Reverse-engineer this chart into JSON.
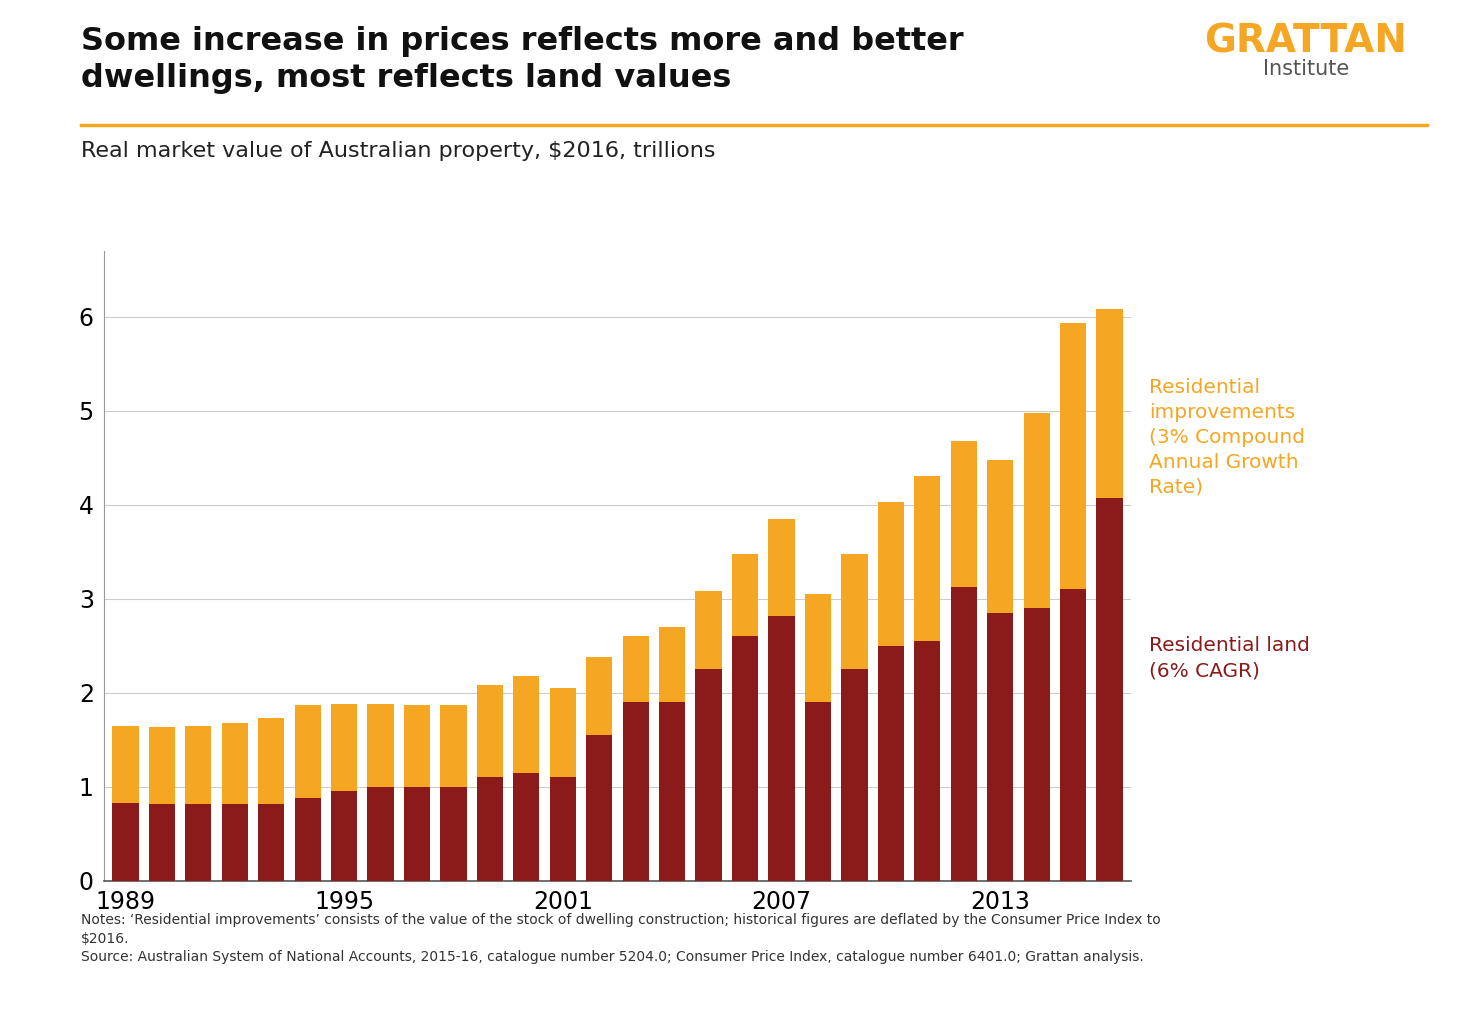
{
  "years": [
    1989,
    1990,
    1991,
    1992,
    1993,
    1994,
    1995,
    1996,
    1997,
    1998,
    1999,
    2000,
    2001,
    2002,
    2003,
    2004,
    2005,
    2006,
    2007,
    2008,
    2009,
    2010,
    2011,
    2012,
    2013,
    2014,
    2015,
    2016
  ],
  "total_values": [
    1.65,
    1.63,
    1.65,
    1.68,
    1.73,
    1.87,
    1.88,
    1.88,
    1.87,
    1.87,
    2.08,
    2.18,
    2.05,
    2.38,
    2.6,
    2.7,
    3.08,
    3.47,
    3.85,
    3.05,
    3.47,
    4.03,
    4.3,
    4.68,
    4.47,
    4.98,
    5.93,
    6.08
  ],
  "land_values": [
    0.83,
    0.82,
    0.82,
    0.82,
    0.82,
    0.88,
    0.95,
    1.0,
    1.0,
    1.0,
    1.1,
    1.15,
    1.1,
    1.55,
    1.9,
    1.9,
    2.25,
    2.6,
    2.82,
    1.9,
    2.25,
    2.5,
    2.55,
    3.12,
    2.85,
    2.9,
    3.1,
    4.07
  ],
  "land_color": "#8B1A1A",
  "improvements_color": "#F5A623",
  "title_line1": "Some increase in prices reflects more and better",
  "title_line2": "dwellings, most reflects land values",
  "subtitle": "Real market value of Australian property, $2016, trillions",
  "notes_line1": "Notes: ‘Residential improvements’ consists of the value of the stock of dwelling construction; historical figures are deflated by the Consumer Price Index to",
  "notes_line2": "$2016.",
  "notes_line3": "Source: Australian System of National Accounts, 2015-16, catalogue number 5204.0; Consumer Price Index, catalogue number 6401.0; Grattan analysis.",
  "label_land": "Residential land\n(6% CAGR)",
  "label_improvements": "Residential\nimprovements\n(3% Compound\nAnnual Growth\nRate)",
  "ylim": [
    0,
    6.7
  ],
  "yticks": [
    0,
    1,
    2,
    3,
    4,
    5,
    6
  ],
  "background_color": "#FFFFFF",
  "grattan_orange": "#F5A623",
  "grattan_text": "#333333",
  "bar_width": 0.72
}
